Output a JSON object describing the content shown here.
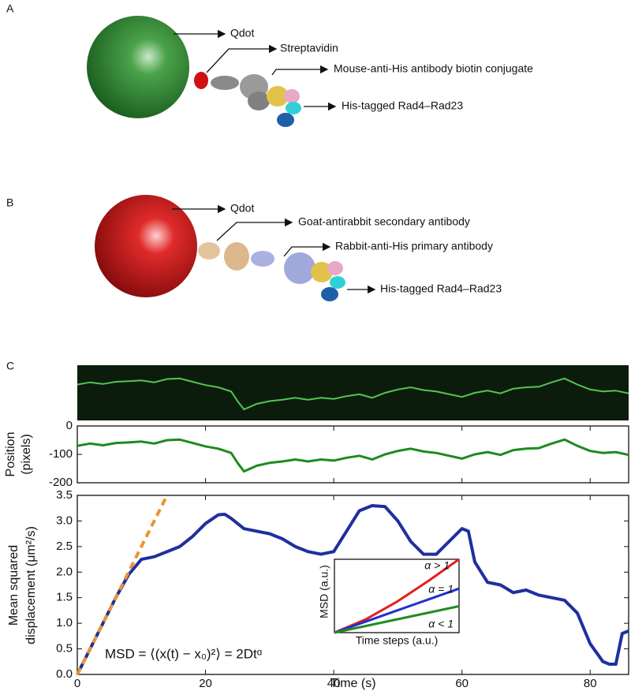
{
  "panels": {
    "a": {
      "label": "A",
      "labels": [
        "Qdot",
        "Streptavidin",
        "Mouse-anti-His antibody biotin conjugate",
        "His-tagged Rad4–Rad23"
      ]
    },
    "b": {
      "label": "B",
      "labels": [
        "Qdot",
        "Goat-antirabbit secondary antibody",
        "Rabbit-anti-His primary antibody",
        "His-tagged Rad4–Rad23"
      ]
    },
    "c": {
      "label": "C"
    }
  },
  "chart_data": [
    {
      "type": "line",
      "kymograph": true,
      "ylabel": [
        "Position",
        "(pixels)"
      ],
      "xlim": [
        0,
        86
      ],
      "ylim": [
        -200,
        0
      ],
      "xticks": [
        0,
        20,
        40,
        60,
        80
      ],
      "xtick_labels": false,
      "yticks": [
        0,
        -100,
        -200
      ],
      "series": [
        {
          "color": "#1f8a1f",
          "x": [
            0,
            2,
            4,
            6,
            8,
            10,
            12,
            14,
            16,
            18,
            20,
            22,
            24,
            25,
            26,
            28,
            30,
            32,
            34,
            36,
            38,
            40,
            42,
            44,
            46,
            48,
            50,
            52,
            54,
            56,
            58,
            60,
            62,
            64,
            66,
            68,
            70,
            72,
            74,
            76,
            78,
            80,
            82,
            84,
            86
          ],
          "values": [
            -70,
            -62,
            -68,
            -60,
            -58,
            -55,
            -62,
            -50,
            -48,
            -60,
            -72,
            -80,
            -95,
            -130,
            -160,
            -140,
            -130,
            -125,
            -118,
            -125,
            -118,
            -122,
            -112,
            -105,
            -118,
            -100,
            -88,
            -80,
            -90,
            -95,
            -105,
            -115,
            -100,
            -92,
            -102,
            -85,
            -80,
            -78,
            -62,
            -48,
            -70,
            -88,
            -95,
            -92,
            -102
          ]
        }
      ]
    },
    {
      "type": "line",
      "xlabel": "Time (s)",
      "ylabel": [
        "Mean squared",
        "displacement (μm²/s)"
      ],
      "annotation": "MSD = ⟨(x(t) − x₀)²⟩ = 2Dtᵅ",
      "xlim": [
        0,
        86
      ],
      "ylim": [
        0,
        3.5
      ],
      "xticks": [
        0,
        20,
        40,
        60,
        80
      ],
      "xtick_labels": true,
      "yticks": [
        {
          "value": 0,
          "label": "0.0"
        },
        0.5,
        {
          "value": 1,
          "label": "1.0"
        },
        1.5,
        {
          "value": 2,
          "label": "2.0"
        },
        2.5,
        {
          "value": 3,
          "label": "3.0"
        },
        3.5
      ],
      "series": [
        {
          "color": "#1f2fa0",
          "x": [
            0,
            2,
            4,
            6,
            8,
            10,
            12,
            14,
            16,
            18,
            20,
            22,
            23,
            24,
            26,
            28,
            30,
            32,
            34,
            36,
            38,
            40,
            42,
            44,
            46,
            48,
            50,
            52,
            54,
            56,
            58,
            60,
            61,
            62,
            64,
            66,
            68,
            70,
            72,
            74,
            76,
            78,
            80,
            82,
            83,
            84,
            85,
            86
          ],
          "values": [
            0,
            0.5,
            1.0,
            1.5,
            1.95,
            2.25,
            2.3,
            2.4,
            2.5,
            2.7,
            2.95,
            3.12,
            3.13,
            3.05,
            2.85,
            2.8,
            2.75,
            2.65,
            2.5,
            2.4,
            2.35,
            2.4,
            2.8,
            3.2,
            3.3,
            3.28,
            3.0,
            2.6,
            2.35,
            2.35,
            2.6,
            2.85,
            2.8,
            2.2,
            1.8,
            1.75,
            1.6,
            1.65,
            1.55,
            1.5,
            1.45,
            1.2,
            0.6,
            0.25,
            0.2,
            0.2,
            0.8,
            0.85
          ]
        },
        {
          "color": "#e8952e",
          "dash": true,
          "x": [
            0,
            14
          ],
          "values": [
            0,
            3.5
          ]
        }
      ]
    },
    {
      "type": "line",
      "xlabel": "Time steps (a.u.)",
      "ylabel": [
        "MSD (a.u.)"
      ],
      "xlim": [
        0,
        1
      ],
      "ylim": [
        0,
        1
      ],
      "series": [
        {
          "name": "α > 1",
          "color": "#e02020",
          "x": [
            0,
            0.25,
            0.5,
            0.75,
            1
          ],
          "values": [
            0,
            0.18,
            0.42,
            0.7,
            1
          ]
        },
        {
          "name": "α = 1",
          "color": "#2030d0",
          "x": [
            0,
            0.25,
            0.5,
            0.75,
            1
          ],
          "values": [
            0,
            0.15,
            0.3,
            0.45,
            0.6
          ]
        },
        {
          "name": "α < 1",
          "color": "#228b22",
          "x": [
            0,
            0.25,
            0.5,
            0.75,
            1
          ],
          "values": [
            0,
            0.09,
            0.18,
            0.27,
            0.36
          ]
        }
      ]
    }
  ]
}
